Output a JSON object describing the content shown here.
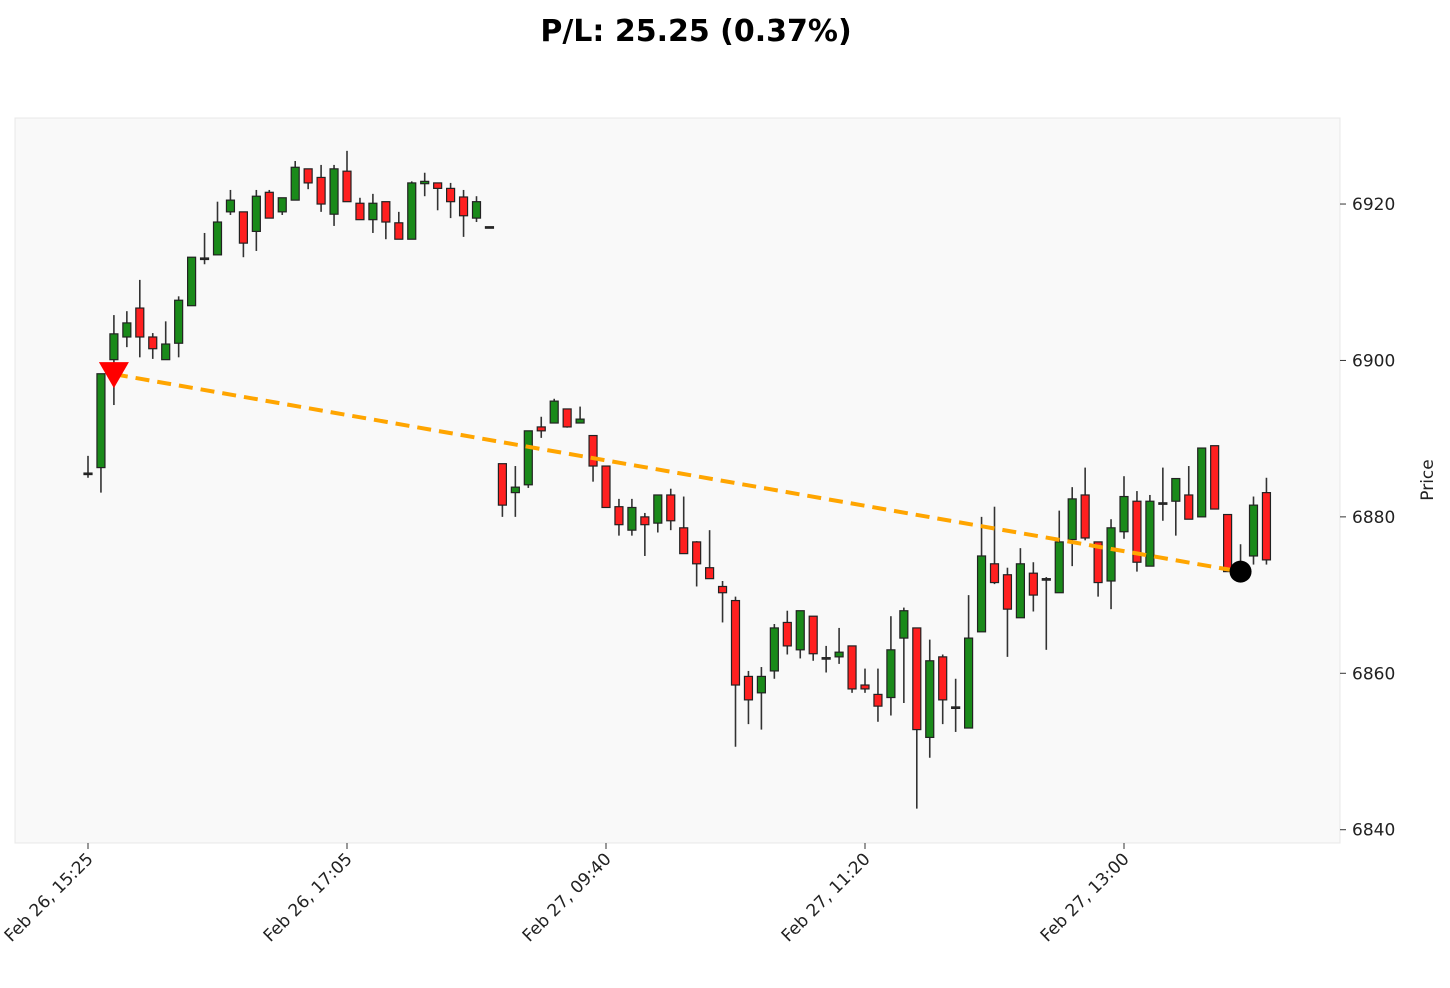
{
  "chart_data": {
    "type": "candlestick",
    "title": "P/L: 25.25 (0.37%)",
    "ylabel": "Price",
    "xlabel": "",
    "y_axis_position": "right",
    "ylim": [
      6838.3,
      6931.0
    ],
    "y_ticks": [
      6840,
      6860,
      6880,
      6900,
      6920
    ],
    "x_ticks": [
      {
        "index": 0,
        "label": "Feb 26, 15:25"
      },
      {
        "index": 20,
        "label": "Feb 26, 17:05"
      },
      {
        "index": 40,
        "label": "Feb 27, 09:40"
      },
      {
        "index": 60,
        "label": "Feb 27, 11:20"
      },
      {
        "index": 80,
        "label": "Feb 27, 13:00"
      }
    ],
    "grid": false,
    "colors": {
      "up": "#1a8a1a",
      "down": "#ff2020",
      "doji": "#333333",
      "trade_line": "#ffa500",
      "entry_marker": "#ff0000",
      "exit_marker": "#000000",
      "background": "#f9f9f9"
    },
    "candle_fields": [
      "open",
      "high",
      "low",
      "close"
    ],
    "candles": [
      [
        6885.6,
        6887.8,
        6885.0,
        6885.6
      ],
      [
        6886.3,
        6898.3,
        6883.1,
        6898.3
      ],
      [
        6900.1,
        6905.8,
        6894.3,
        6903.4
      ],
      [
        6903.0,
        6906.3,
        6901.7,
        6904.8
      ],
      [
        6906.7,
        6910.3,
        6900.4,
        6903.0
      ],
      [
        6903.0,
        6903.5,
        6900.2,
        6901.5
      ],
      [
        6900.1,
        6905.0,
        6900.1,
        6902.1
      ],
      [
        6902.2,
        6908.2,
        6900.4,
        6907.7
      ],
      [
        6907.0,
        6913.2,
        6907.0,
        6913.2
      ],
      [
        6913.1,
        6916.3,
        6912.3,
        6913.1
      ],
      [
        6913.5,
        6920.3,
        6913.5,
        6917.7
      ],
      [
        6919.0,
        6921.8,
        6918.6,
        6920.5
      ],
      [
        6919.0,
        6919.0,
        6913.2,
        6915.0
      ],
      [
        6916.5,
        6921.8,
        6914.0,
        6921.0
      ],
      [
        6921.5,
        6921.8,
        6918.2,
        6918.2
      ],
      [
        6919.0,
        6920.8,
        6918.6,
        6920.8
      ],
      [
        6920.5,
        6925.5,
        6920.5,
        6924.7
      ],
      [
        6924.5,
        6924.5,
        6921.9,
        6922.7
      ],
      [
        6923.4,
        6925.0,
        6919.0,
        6920.0
      ],
      [
        6918.7,
        6925.0,
        6917.2,
        6924.5
      ],
      [
        6924.2,
        6926.8,
        6920.3,
        6920.3
      ],
      [
        6920.1,
        6920.8,
        6918.0,
        6918.0
      ],
      [
        6918.0,
        6921.3,
        6916.3,
        6920.1
      ],
      [
        6920.3,
        6920.3,
        6915.5,
        6917.7
      ],
      [
        6917.6,
        6919.0,
        6915.5,
        6915.5
      ],
      [
        6915.5,
        6922.9,
        6915.5,
        6922.7
      ],
      [
        6922.6,
        6924.0,
        6921.0,
        6922.9
      ],
      [
        6922.7,
        6922.7,
        6919.2,
        6922.0
      ],
      [
        6922.0,
        6922.7,
        6918.2,
        6920.3
      ],
      [
        6920.9,
        6921.8,
        6915.8,
        6918.5
      ],
      [
        6918.2,
        6921.0,
        6917.7,
        6920.3
      ],
      [
        6917.1,
        6917.1,
        6917.1,
        6917.1
      ],
      [
        6886.8,
        6886.8,
        6880.0,
        6881.5
      ],
      [
        6883.1,
        6886.5,
        6880.0,
        6883.8
      ],
      [
        6884.1,
        6891.0,
        6883.7,
        6891.0
      ],
      [
        6891.5,
        6892.8,
        6890.1,
        6891.0
      ],
      [
        6892.0,
        6895.1,
        6892.0,
        6894.8
      ],
      [
        6893.8,
        6893.8,
        6891.4,
        6891.5
      ],
      [
        6892.0,
        6894.1,
        6892.0,
        6892.5
      ],
      [
        6890.4,
        6890.4,
        6884.5,
        6886.5
      ],
      [
        6886.5,
        6886.5,
        6881.2,
        6881.2
      ],
      [
        6881.3,
        6882.3,
        6877.6,
        6879.0
      ],
      [
        6878.3,
        6882.3,
        6877.6,
        6881.2
      ],
      [
        6880.0,
        6880.5,
        6875.0,
        6879.0
      ],
      [
        6879.2,
        6882.8,
        6878.0,
        6882.8
      ],
      [
        6882.8,
        6883.6,
        6878.3,
        6879.5
      ],
      [
        6878.6,
        6882.6,
        6875.3,
        6875.3
      ],
      [
        6876.8,
        6876.9,
        6871.1,
        6874.0
      ],
      [
        6873.5,
        6878.3,
        6872.1,
        6872.1
      ],
      [
        6871.1,
        6871.8,
        6866.5,
        6870.3
      ],
      [
        6869.3,
        6869.8,
        6850.6,
        6858.5
      ],
      [
        6859.6,
        6860.3,
        6853.5,
        6856.6
      ],
      [
        6857.5,
        6860.8,
        6852.8,
        6859.6
      ],
      [
        6860.3,
        6866.3,
        6859.3,
        6865.8
      ],
      [
        6866.5,
        6868.0,
        6862.4,
        6863.5
      ],
      [
        6863.0,
        6868.0,
        6861.9,
        6868.0
      ],
      [
        6867.3,
        6867.3,
        6861.6,
        6862.5
      ],
      [
        6862.0,
        6863.5,
        6860.1,
        6862.0
      ],
      [
        6862.1,
        6865.8,
        6861.2,
        6862.7
      ],
      [
        6863.5,
        6863.5,
        6857.5,
        6858.0
      ],
      [
        6858.5,
        6860.6,
        6857.5,
        6858.0
      ],
      [
        6857.3,
        6860.6,
        6853.8,
        6855.8
      ],
      [
        6856.9,
        6867.3,
        6854.6,
        6863.0
      ],
      [
        6864.5,
        6868.4,
        6856.2,
        6868.0
      ],
      [
        6865.8,
        6865.8,
        6842.7,
        6852.8
      ],
      [
        6851.8,
        6864.3,
        6849.2,
        6861.6
      ],
      [
        6862.1,
        6862.4,
        6853.5,
        6856.6
      ],
      [
        6855.7,
        6859.3,
        6852.5,
        6855.7
      ],
      [
        6853.0,
        6870.0,
        6853.0,
        6864.5
      ],
      [
        6865.3,
        6880.0,
        6865.3,
        6875.0
      ],
      [
        6874.0,
        6881.3,
        6871.4,
        6871.6
      ],
      [
        6872.6,
        6873.5,
        6862.1,
        6868.2
      ],
      [
        6867.1,
        6876.0,
        6867.1,
        6874.0
      ],
      [
        6872.8,
        6874.2,
        6867.9,
        6870.0
      ],
      [
        6872.1,
        6872.3,
        6863.0,
        6872.1
      ],
      [
        6870.3,
        6880.8,
        6870.3,
        6876.8
      ],
      [
        6877.1,
        6883.8,
        6873.7,
        6882.3
      ],
      [
        6882.8,
        6886.3,
        6877.0,
        6877.3
      ],
      [
        6876.8,
        6876.8,
        6869.8,
        6871.6
      ],
      [
        6871.8,
        6879.7,
        6868.2,
        6878.6
      ],
      [
        6878.1,
        6885.2,
        6877.2,
        6882.6
      ],
      [
        6882.0,
        6883.3,
        6873.0,
        6874.2
      ],
      [
        6873.7,
        6882.8,
        6873.7,
        6882.0
      ],
      [
        6881.8,
        6886.3,
        6879.5,
        6881.8
      ],
      [
        6882.0,
        6884.9,
        6877.6,
        6884.9
      ],
      [
        6882.8,
        6886.5,
        6879.7,
        6879.7
      ],
      [
        6880.0,
        6888.8,
        6880.0,
        6888.8
      ],
      [
        6889.1,
        6889.1,
        6881.0,
        6881.0
      ],
      [
        6880.3,
        6880.3,
        6873.0,
        6873.0
      ],
      [
        6872.9,
        6876.5,
        6872.5,
        6873.2
      ],
      [
        6875.0,
        6882.6,
        6873.9,
        6881.5
      ],
      [
        6883.1,
        6885.0,
        6873.9,
        6874.5
      ]
    ],
    "trade": {
      "direction": "short",
      "entry": {
        "index": 2,
        "price": 6898.25,
        "marker": "down-triangle"
      },
      "exit": {
        "index": 89,
        "price": 6873.0,
        "marker": "circle"
      },
      "line_style": "dashed"
    }
  }
}
